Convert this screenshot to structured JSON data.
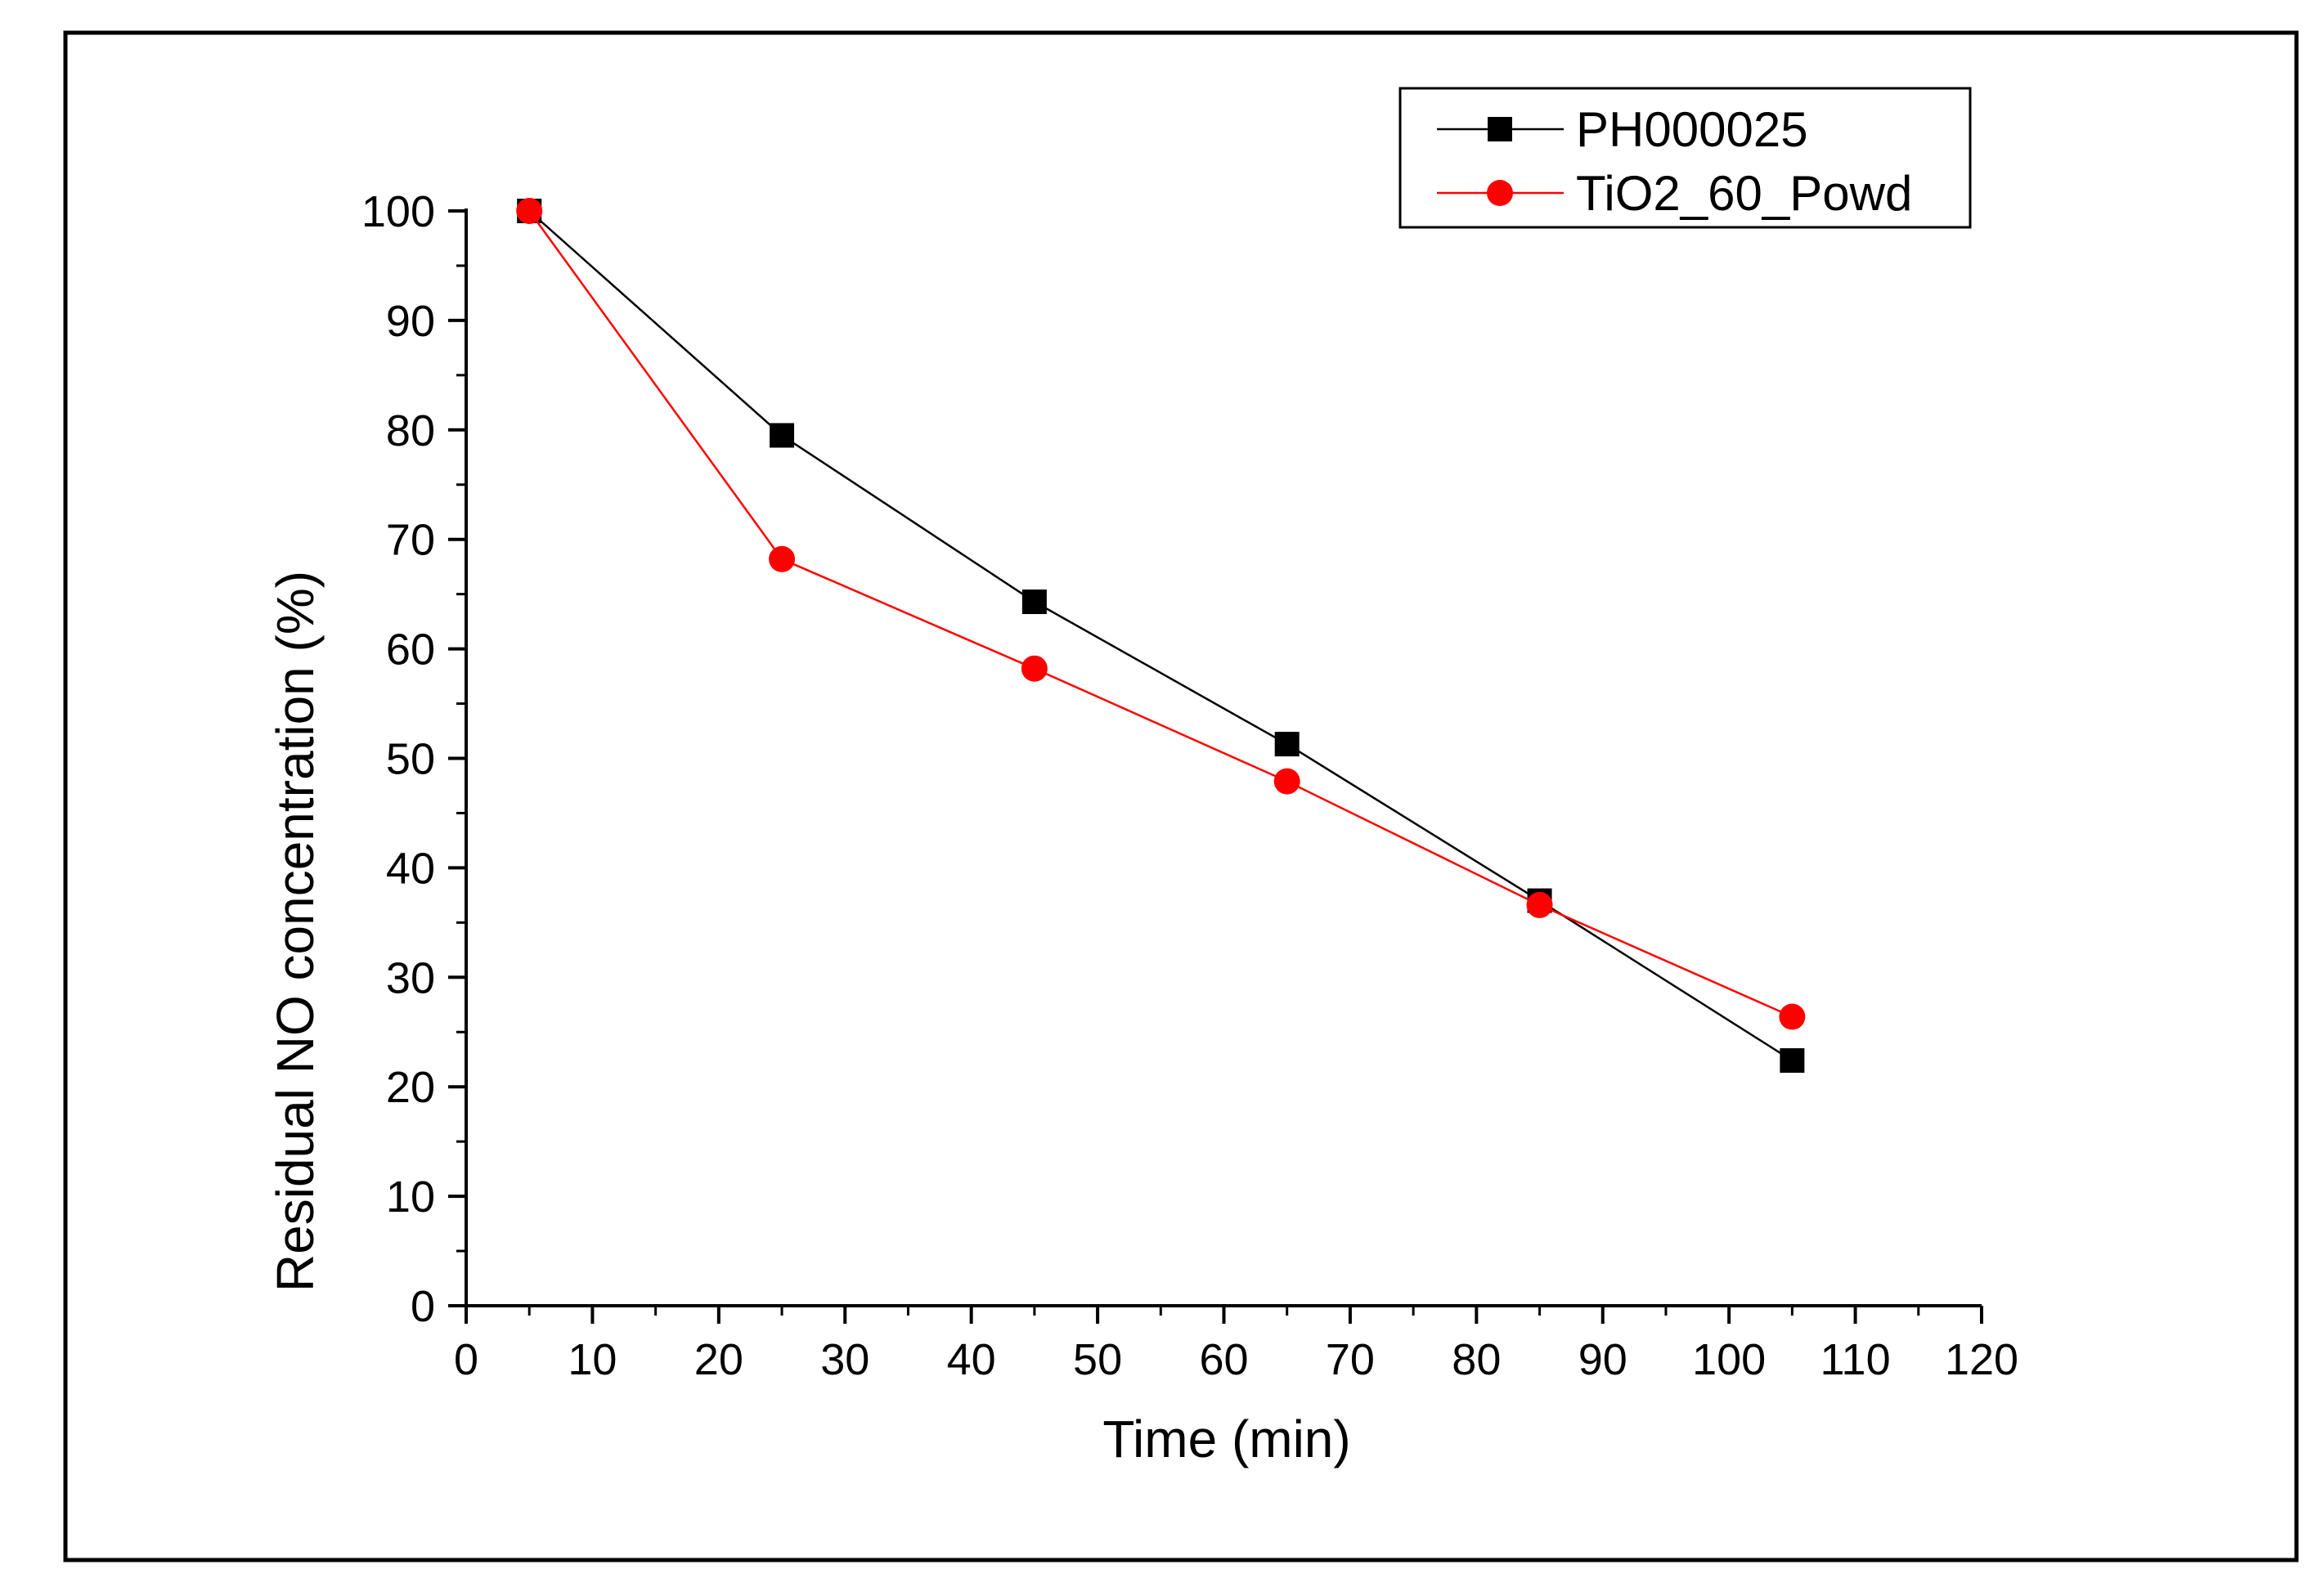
{
  "chart_data": {
    "type": "line",
    "title": "",
    "xlabel": "Time (min)",
    "ylabel": "Residual NO concentration (%)",
    "xlim": [
      0,
      120
    ],
    "ylim": [
      0,
      100
    ],
    "xticks": [
      0,
      10,
      20,
      30,
      40,
      50,
      60,
      70,
      80,
      90,
      100,
      110,
      120
    ],
    "yticks": [
      0,
      10,
      20,
      30,
      40,
      50,
      60,
      70,
      80,
      90,
      100
    ],
    "x": [
      5,
      25,
      45,
      65,
      85,
      105
    ],
    "legend_position": "top-right",
    "grid": false,
    "series": [
      {
        "name": "PH000025",
        "marker": "square",
        "color": "#000000",
        "values": [
          100,
          79.5,
          64.3,
          51.3,
          37.0,
          22.4
        ]
      },
      {
        "name": "TiO2_60_Powd",
        "marker": "circle",
        "color": "#ff0000",
        "values": [
          100,
          68.2,
          58.2,
          47.9,
          36.6,
          26.4
        ]
      }
    ]
  }
}
